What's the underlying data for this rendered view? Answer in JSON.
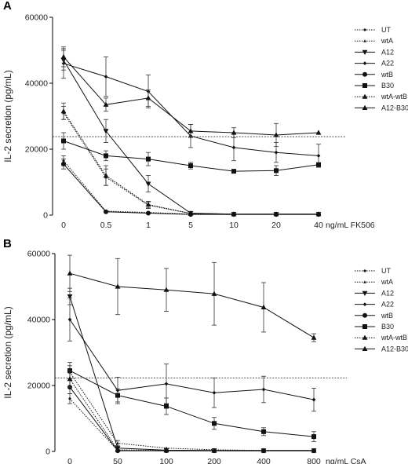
{
  "chart_data": [
    {
      "panel": "A",
      "type": "line",
      "ylabel": "IL-2 secretion (pg/mL)",
      "xlabel": "ng/mL FK506",
      "categories": [
        "0",
        "0.5",
        "1",
        "5",
        "10",
        "20",
        "40"
      ],
      "yticks": [
        "0",
        "20000",
        "40000",
        "60000"
      ],
      "ylim": [
        0,
        60000
      ],
      "reference_line": 23800,
      "legend_position": "right",
      "series": [
        {
          "name": "UT",
          "marker": "dot-small",
          "dash": "dotted",
          "values": [
            16500,
            1200,
            800,
            300,
            200,
            200,
            200
          ],
          "errors": [
            1500,
            300,
            200,
            100,
            100,
            100,
            100
          ]
        },
        {
          "name": "wtA",
          "marker": "tri-small",
          "dash": "dotted",
          "values": [
            31000,
            11500,
            3000,
            500,
            300,
            300,
            300
          ],
          "errors": [
            2000,
            2500,
            1000,
            200,
            100,
            100,
            100
          ]
        },
        {
          "name": "A12",
          "marker": "tri-down",
          "dash": "solid",
          "values": [
            47000,
            25500,
            9500,
            600,
            300,
            300,
            300
          ],
          "errors": [
            3000,
            3500,
            2500,
            300,
            100,
            100,
            100
          ]
        },
        {
          "name": "A22",
          "marker": "diamond",
          "dash": "solid",
          "values": [
            46000,
            42000,
            37500,
            24000,
            20500,
            19000,
            18000
          ],
          "errors": [
            4500,
            6000,
            5000,
            3500,
            4000,
            3000,
            3500
          ]
        },
        {
          "name": "wtB",
          "marker": "dot",
          "dash": "solid",
          "values": [
            15500,
            1000,
            600,
            200,
            200,
            200,
            200
          ],
          "errors": [
            1500,
            200,
            200,
            100,
            100,
            100,
            100
          ]
        },
        {
          "name": "B30",
          "marker": "square",
          "dash": "solid",
          "values": [
            22500,
            18000,
            17000,
            15000,
            13300,
            13500,
            15300
          ],
          "errors": [
            2500,
            1500,
            2000,
            1000,
            300,
            1500,
            500
          ]
        },
        {
          "name": "wtA-wtB",
          "marker": "tri",
          "dash": "dotted",
          "values": [
            31500,
            12000,
            3200,
            500,
            300,
            300,
            300
          ],
          "errors": [
            2500,
            3000,
            1000,
            200,
            100,
            100,
            100
          ]
        },
        {
          "name": "A12-B30",
          "marker": "tri",
          "dash": "solid",
          "values": [
            48000,
            33500,
            35500,
            25500,
            25000,
            24300,
            25000
          ],
          "errors": [
            3000,
            2000,
            2500,
            2000,
            1500,
            3500,
            300
          ]
        }
      ]
    },
    {
      "panel": "B",
      "type": "line",
      "ylabel": "IL-2 secretion (pg/mL)",
      "xlabel": "ng/mL CsA",
      "categories": [
        "0",
        "50",
        "100",
        "200",
        "400",
        "800"
      ],
      "yticks": [
        "0",
        "20000",
        "40000",
        "60000"
      ],
      "ylim": [
        0,
        60000
      ],
      "reference_line": 22300,
      "legend_position": "right",
      "series": [
        {
          "name": "UT",
          "marker": "dot-small",
          "dash": "dotted",
          "values": [
            16000,
            300,
            200,
            200,
            200,
            200
          ],
          "errors": [
            1500,
            100,
            100,
            100,
            100,
            100
          ]
        },
        {
          "name": "wtA",
          "marker": "tri-small",
          "dash": "dotted",
          "values": [
            24000,
            2500,
            1000,
            500,
            300,
            300
          ],
          "errors": [
            2000,
            800,
            300,
            200,
            100,
            100
          ]
        },
        {
          "name": "A12",
          "marker": "tri-down",
          "dash": "solid",
          "values": [
            47000,
            1000,
            400,
            300,
            300,
            300
          ],
          "errors": [
            2500,
            400,
            200,
            100,
            100,
            100
          ]
        },
        {
          "name": "A22",
          "marker": "diamond",
          "dash": "solid",
          "values": [
            40000,
            18500,
            20500,
            17800,
            18800,
            15700
          ],
          "errors": [
            6500,
            4000,
            6000,
            4500,
            4000,
            3500
          ]
        },
        {
          "name": "wtB",
          "marker": "dot",
          "dash": "solid",
          "values": [
            19500,
            200,
            200,
            200,
            200,
            200
          ],
          "errors": [
            2000,
            100,
            100,
            100,
            100,
            100
          ]
        },
        {
          "name": "B30",
          "marker": "square",
          "dash": "solid",
          "values": [
            24500,
            17000,
            13700,
            8500,
            6000,
            4500
          ],
          "errors": [
            2500,
            2000,
            2500,
            1800,
            1200,
            1500
          ]
        },
        {
          "name": "wtA-wtB",
          "marker": "tri",
          "dash": "dotted",
          "values": [
            22000,
            500,
            300,
            200,
            200,
            200
          ],
          "errors": [
            2500,
            200,
            100,
            100,
            100,
            100
          ]
        },
        {
          "name": "A12-B30",
          "marker": "tri",
          "dash": "solid",
          "values": [
            54000,
            50000,
            49000,
            47800,
            43700,
            34500
          ],
          "errors": [
            5500,
            8500,
            6500,
            9500,
            7500,
            1200
          ]
        }
      ]
    }
  ]
}
